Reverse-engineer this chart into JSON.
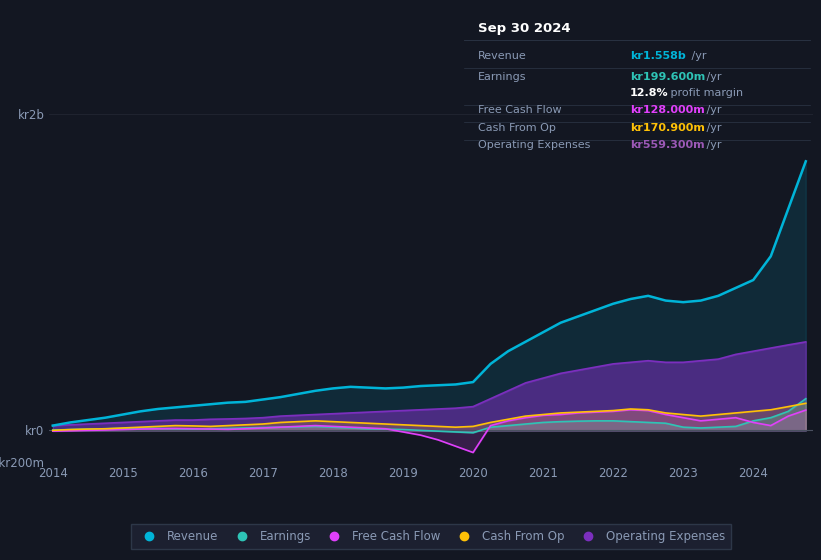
{
  "background_color": "#131722",
  "plot_bg": "#131722",
  "title": "Sep 30 2024",
  "ylim": [
    -200,
    2100
  ],
  "years": [
    2014.0,
    2014.25,
    2014.5,
    2014.75,
    2015.0,
    2015.25,
    2015.5,
    2015.75,
    2016.0,
    2016.25,
    2016.5,
    2016.75,
    2017.0,
    2017.25,
    2017.5,
    2017.75,
    2018.0,
    2018.25,
    2018.5,
    2018.75,
    2019.0,
    2019.25,
    2019.5,
    2019.75,
    2020.0,
    2020.25,
    2020.5,
    2020.75,
    2021.0,
    2021.25,
    2021.5,
    2021.75,
    2022.0,
    2022.25,
    2022.5,
    2022.75,
    2023.0,
    2023.25,
    2023.5,
    2023.75,
    2024.0,
    2024.25,
    2024.5,
    2024.75
  ],
  "revenue": [
    30,
    50,
    65,
    80,
    100,
    120,
    135,
    145,
    155,
    165,
    175,
    180,
    195,
    210,
    230,
    250,
    265,
    275,
    270,
    265,
    270,
    280,
    285,
    290,
    305,
    420,
    500,
    560,
    620,
    680,
    720,
    760,
    800,
    830,
    850,
    820,
    810,
    820,
    850,
    900,
    950,
    1100,
    1400,
    1700
  ],
  "earnings": [
    2,
    5,
    8,
    10,
    12,
    15,
    12,
    10,
    8,
    10,
    12,
    15,
    18,
    20,
    22,
    25,
    20,
    15,
    10,
    8,
    5,
    0,
    -5,
    -10,
    -15,
    20,
    30,
    40,
    50,
    55,
    58,
    60,
    60,
    55,
    50,
    45,
    20,
    15,
    20,
    25,
    60,
    80,
    120,
    200
  ],
  "free_cash_flow": [
    -5,
    -3,
    0,
    2,
    5,
    8,
    10,
    12,
    10,
    8,
    6,
    10,
    15,
    20,
    25,
    30,
    25,
    20,
    15,
    10,
    -10,
    -30,
    -60,
    -100,
    -140,
    30,
    60,
    80,
    95,
    100,
    110,
    115,
    120,
    130,
    125,
    100,
    80,
    60,
    70,
    80,
    50,
    30,
    90,
    128
  ],
  "cash_from_op": [
    0,
    5,
    8,
    10,
    15,
    20,
    25,
    30,
    28,
    25,
    30,
    35,
    40,
    50,
    55,
    60,
    55,
    50,
    45,
    40,
    35,
    30,
    25,
    20,
    25,
    50,
    70,
    90,
    100,
    110,
    115,
    120,
    125,
    135,
    130,
    110,
    100,
    90,
    100,
    110,
    120,
    130,
    150,
    171
  ],
  "operating_expenses": [
    30,
    35,
    40,
    45,
    50,
    55,
    60,
    65,
    65,
    70,
    72,
    75,
    80,
    90,
    95,
    100,
    105,
    110,
    115,
    120,
    125,
    130,
    135,
    140,
    150,
    200,
    250,
    300,
    330,
    360,
    380,
    400,
    420,
    430,
    440,
    430,
    430,
    440,
    450,
    480,
    500,
    520,
    540,
    559
  ],
  "revenue_color": "#00b4d8",
  "earnings_color": "#2ec4b6",
  "free_cash_flow_color": "#e040fb",
  "cash_from_op_color": "#ffc107",
  "operating_expenses_color": "#7b2fbe",
  "grid_color": "#2a2e3a",
  "text_color": "#8a9ab5",
  "tooltip_bg": "#0d1117",
  "tooltip_border": "#2d3748",
  "legend_bg": "#1c2030",
  "tooltip_title_color": "#ffffff",
  "tooltip_label_color": "#8a9ab5",
  "tooltip_revenue_color": "#00b4d8",
  "tooltip_earnings_color": "#2ec4b6",
  "tooltip_fcf_color": "#e040fb",
  "tooltip_cfop_color": "#ffc107",
  "tooltip_opex_color": "#9b59b6",
  "tooltip_white": "#e8eaf0",
  "tooltip_bold_white": "#ffffff"
}
